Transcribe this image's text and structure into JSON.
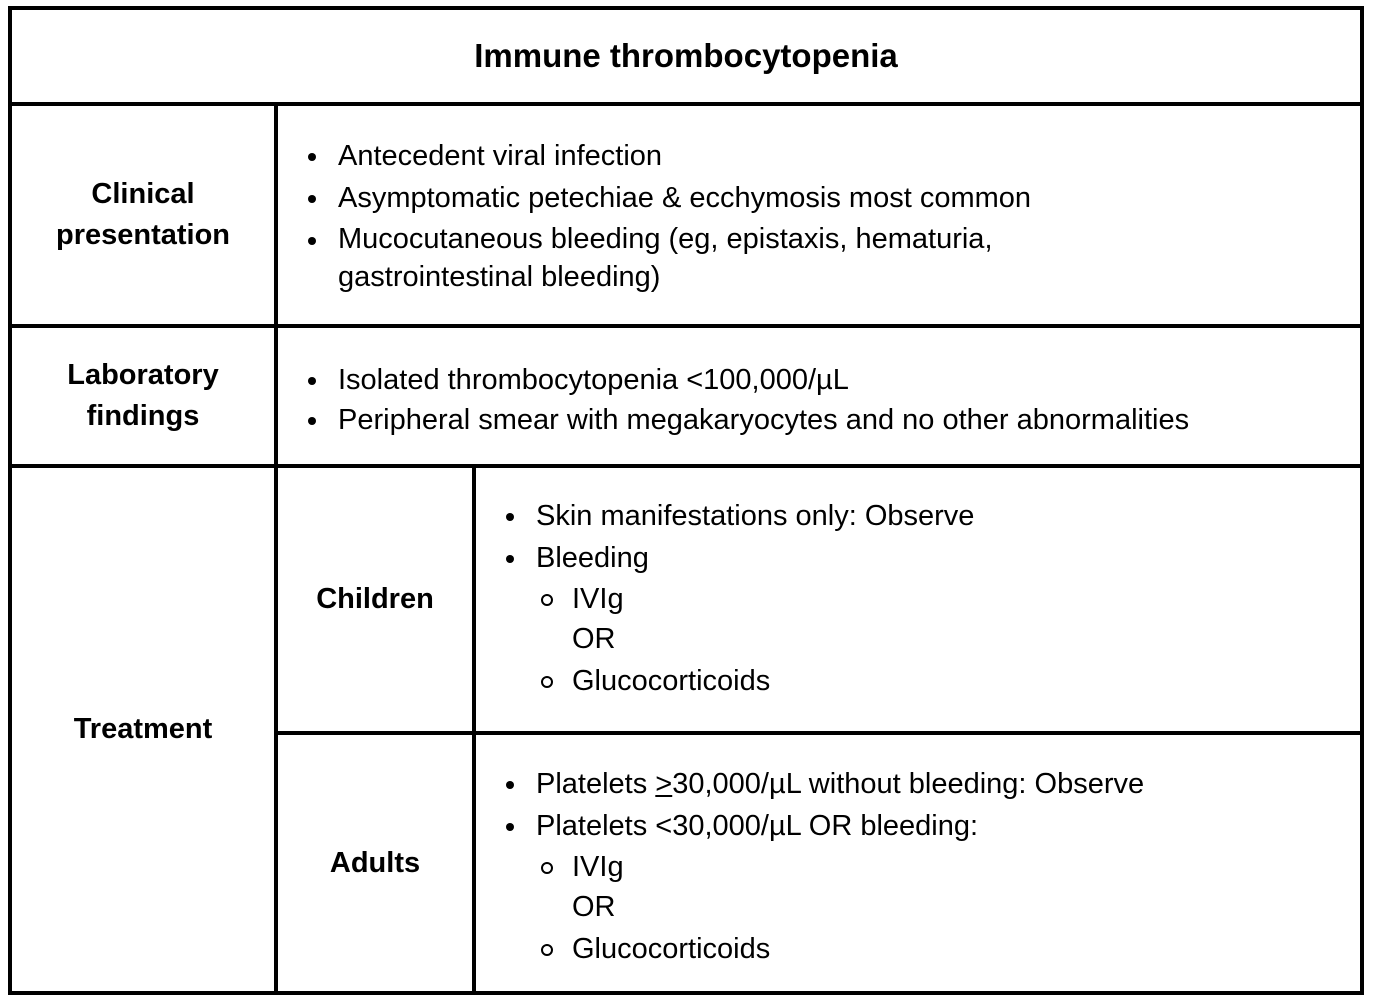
{
  "title": "Immune thrombocytopenia",
  "clinical": {
    "label_line1": "Clinical",
    "label_line2": "presentation",
    "items": [
      "Antecedent viral infection",
      "Asymptomatic petechiae & ecchymosis most common",
      "Mucocutaneous bleeding (eg, epistaxis, hematuria,",
      "gastrointestinal bleeding)"
    ]
  },
  "laboratory": {
    "label_line1": "Laboratory",
    "label_line2": "findings",
    "items": [
      "Isolated thrombocytopenia <100,000/µL",
      "Peripheral smear with megakaryocytes and no other abnormalities"
    ]
  },
  "treatment": {
    "label": "Treatment",
    "children": {
      "label": "Children",
      "items": [
        "Skin manifestations only: Observe",
        "Bleeding"
      ],
      "sub_items": [
        "IVIg",
        "OR",
        "Glucocorticoids"
      ]
    },
    "adults": {
      "label": "Adults",
      "item1_prefix": "Platelets ",
      "item1_symbol": ">",
      "item1_rest": "30,000/µL without bleeding: Observe",
      "item2": "Platelets <30,000/µL OR bleeding:",
      "sub_items": [
        "IVIg",
        "OR",
        "Glucocorticoids"
      ]
    }
  }
}
